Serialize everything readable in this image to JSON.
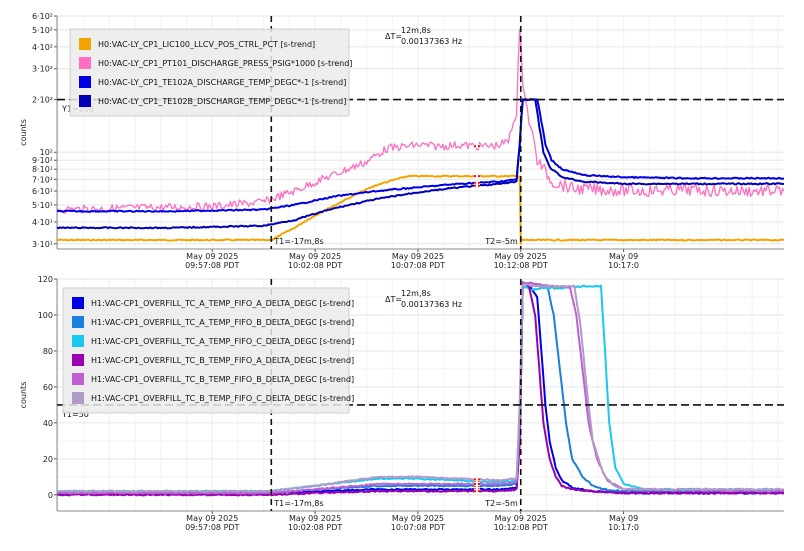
{
  "chart_data": [
    {
      "type": "line",
      "ylabel": "counts",
      "yscale": "log",
      "ylim": [
        28,
        600
      ],
      "yticks": [
        {
          "v": 30,
          "label": "3·10¹"
        },
        {
          "v": 40,
          "label": "4·10¹"
        },
        {
          "v": 50,
          "label": "5·10¹"
        },
        {
          "v": 60,
          "label": "6·10¹"
        },
        {
          "v": 70,
          "label": "7·10¹"
        },
        {
          "v": 80,
          "label": "8·10¹"
        },
        {
          "v": 90,
          "label": "9·10¹"
        },
        {
          "v": 100,
          "label": "10²"
        },
        {
          "v": 200,
          "label": "2·10²"
        },
        {
          "v": 300,
          "label": "3·10²"
        },
        {
          "v": 400,
          "label": "4·10²"
        },
        {
          "v": 500,
          "label": "5·10²"
        },
        {
          "v": 600,
          "label": "6·10²"
        }
      ],
      "xlim": [
        -27.55,
        7.8
      ],
      "xticks": [
        {
          "v": -20,
          "line1": "May 09 2025",
          "line2": "09:57:08 PDT"
        },
        {
          "v": -15,
          "line1": "May 09 2025",
          "line2": "10:02:08 PDT"
        },
        {
          "v": -10,
          "line1": "May 09 2025",
          "line2": "10:07:08 PDT"
        },
        {
          "v": -5,
          "line1": "May 09 2025",
          "line2": "10:12:08 PDT"
        },
        {
          "v": 0,
          "line1": "May 09",
          "line2": "10:17:0"
        }
      ],
      "cursors": {
        "t1_value": -17.13,
        "t1_label": "T1=-17m,8s",
        "t2_value": -5.0,
        "t2_label": "T2=-5m",
        "y1_value": 200,
        "y1_label": "Y1=200",
        "delta_label": "ΔT=",
        "delta_line1": "12m,8s",
        "delta_line2": "0.00137363 Hz"
      },
      "series": [
        {
          "name": "H0:VAC-LY_CP1_LIC100_LLCV_POS_CTRL_PCT [s-trend]",
          "color": "#f5a300",
          "x": [
            -27.55,
            -17.13,
            -17.0,
            -16,
            -14,
            -12,
            -10.5,
            -8,
            -6,
            -5.2,
            -5.05,
            -5.0,
            -4.98,
            7.8
          ],
          "y": [
            31.5,
            31.5,
            32,
            37,
            50,
            65,
            73,
            73,
            73,
            73,
            73,
            30,
            31.5,
            31.5
          ]
        },
        {
          "name": "H0:VAC-LY_CP1_PT101_DISCHARGE_PRESS_PSIG*1000 [s-trend]",
          "color": "#ff6ec0",
          "x": [
            -27.55,
            -24,
            -20,
            -17.5,
            -16,
            -14,
            -12.5,
            -11.5,
            -10,
            -9,
            -8,
            -7,
            -6.2,
            -5.6,
            -5.2,
            -5.05,
            -4.9,
            -4.6,
            -4.2,
            -3.5,
            -2.5,
            -1,
            1,
            3,
            5,
            7.8
          ],
          "y": [
            47,
            48,
            49,
            52,
            60,
            75,
            88,
            105,
            110,
            108,
            110,
            108,
            109,
            115,
            170,
            480,
            250,
            150,
            90,
            68,
            62,
            61,
            60,
            61,
            60,
            60
          ]
        },
        {
          "name": "H0:VAC-LY_CP1_TE102A_DISCHARGE_TEMP_DEGC*-1 [s-trend]",
          "color": "#0000e6",
          "x": [
            -27.55,
            -22,
            -17.5,
            -16,
            -14,
            -12,
            -10,
            -8,
            -6,
            -5.2,
            -5.05,
            -4.9,
            -4.2,
            -4,
            -3.8,
            -3.5,
            -3,
            -2,
            0,
            3,
            7.8
          ],
          "y": [
            46,
            46,
            47,
            50,
            56,
            60,
            63,
            66,
            68,
            70,
            110,
            200,
            200,
            150,
            110,
            90,
            80,
            74,
            72,
            71,
            71
          ]
        },
        {
          "name": "H0:VAC-LY_CP1_TE102B_DISCHARGE_TEMP_DEGC*-1 [s-trend]",
          "color": "#0000b8",
          "x": [
            -27.55,
            -22,
            -17.5,
            -16,
            -14,
            -12,
            -10,
            -8,
            -6,
            -5.2,
            -5.05,
            -4.9,
            -4.3,
            -4.1,
            -3.9,
            -3.6,
            -3,
            -2,
            0,
            3,
            7.8
          ],
          "y": [
            37,
            37,
            38,
            41,
            48,
            54,
            59,
            63,
            66,
            68,
            110,
            200,
            200,
            140,
            100,
            82,
            72,
            68,
            66,
            66,
            66
          ]
        }
      ]
    },
    {
      "type": "line",
      "ylabel": "counts",
      "ylim": [
        -9,
        120
      ],
      "yticks": [
        0,
        20,
        40,
        60,
        80,
        100,
        120
      ],
      "xlim": [
        -27.55,
        7.8
      ],
      "xticks": [
        {
          "v": -20,
          "line1": "May 09 2025",
          "line2": "09:57:08 PDT"
        },
        {
          "v": -15,
          "line1": "May 09 2025",
          "line2": "10:02:08 PDT"
        },
        {
          "v": -10,
          "line1": "May 09 2025",
          "line2": "10:07:08 PDT"
        },
        {
          "v": -5,
          "line1": "May 09 2025",
          "line2": "10:12:08 PDT"
        },
        {
          "v": 0,
          "line1": "May 09",
          "line2": "10:17:0"
        }
      ],
      "cursors": {
        "t1_value": -17.13,
        "t1_label": "T1=-17m,8s",
        "t2_value": -5.0,
        "t2_label": "T2=-5m",
        "y1_value": 50,
        "y1_label": "Y1=50",
        "delta_label": "ΔT=",
        "delta_line1": "12m,8s",
        "delta_line2": "0.00137363 Hz"
      },
      "series": [
        {
          "name": "H1:VAC-CP1_OVERFILL_TC_A_TEMP_FIFO_A_DELTA_DEGC [s-trend]",
          "color": "#0000e6",
          "x": [
            -27.55,
            -17.2,
            -15,
            -12,
            -10,
            -8,
            -6,
            -5.2,
            -5.05,
            -4.9,
            -4.5,
            -4.2,
            -4,
            -3.8,
            -3.6,
            -3.3,
            -3,
            -2.5,
            -1.5,
            0,
            7.8
          ],
          "y": [
            1,
            1,
            2,
            3,
            3,
            3,
            3,
            4,
            30,
            118,
            115,
            110,
            80,
            50,
            30,
            15,
            8,
            4,
            2,
            1,
            1
          ]
        },
        {
          "name": "H1:VAC-CP1_OVERFILL_TC_A_TEMP_FIFO_B_DELTA_DEGC [s-trend]",
          "color": "#1a7de0",
          "x": [
            -27.55,
            -17.2,
            -15,
            -12,
            -10,
            -8,
            -6,
            -5.2,
            -5.05,
            -4.9,
            -4.2,
            -3.7,
            -3.4,
            -3.1,
            -2.8,
            -2.5,
            -2,
            -1.5,
            -1,
            0,
            7.8
          ],
          "y": [
            1,
            1,
            3,
            5,
            5,
            5,
            5,
            6,
            40,
            118,
            117,
            116,
            100,
            70,
            40,
            20,
            10,
            5,
            3,
            2,
            2
          ]
        },
        {
          "name": "H1:VAC-CP1_OVERFILL_TC_A_TEMP_FIFO_C_DELTA_DEGC [s-trend]",
          "color": "#19c8f0",
          "x": [
            -27.55,
            -17.2,
            -15,
            -12,
            -10,
            -8,
            -6,
            -5.2,
            -5.05,
            -4.9,
            -4.5,
            -4,
            -3,
            -2,
            -1.1,
            -0.9,
            -0.7,
            -0.4,
            0,
            1,
            7.8
          ],
          "y": [
            2,
            2,
            5,
            9,
            9,
            8,
            7,
            8,
            50,
            116,
            114,
            115,
            115,
            116,
            116,
            80,
            40,
            15,
            6,
            3,
            3
          ]
        },
        {
          "name": "H1:VAC-CP1_OVERFILL_TC_B_TEMP_FIFO_A_DELTA_DEGC [s-trend]",
          "color": "#9a00b0",
          "x": [
            -27.55,
            -17.2,
            -15,
            -12,
            -10,
            -8,
            -6,
            -5.2,
            -5.05,
            -4.9,
            -4.6,
            -4.3,
            -4.1,
            -3.9,
            -3.6,
            -3.3,
            -3,
            -2.5,
            -1.5,
            0,
            7.8
          ],
          "y": [
            0,
            0,
            1,
            2,
            2,
            2,
            2,
            3,
            30,
            118,
            116,
            100,
            70,
            40,
            20,
            10,
            5,
            3,
            2,
            1,
            1
          ]
        },
        {
          "name": "H1:VAC-CP1_OVERFILL_TC_B_TEMP_FIFO_B_DELTA_DEGC [s-trend]",
          "color": "#c060d0",
          "x": [
            -27.55,
            -17.2,
            -15,
            -12,
            -10,
            -8,
            -6,
            -5.2,
            -5.05,
            -4.9,
            -4.2,
            -3.5,
            -3,
            -2.6,
            -2.3,
            -2,
            -1.7,
            -1.3,
            -0.8,
            0,
            7.8
          ],
          "y": [
            1,
            1,
            3,
            6,
            6,
            6,
            6,
            7,
            40,
            118,
            117,
            116,
            116,
            115,
            100,
            70,
            40,
            20,
            8,
            3,
            2
          ]
        },
        {
          "name": "H1:VAC-CP1_OVERFILL_TC_B_TEMP_FIFO_C_DELTA_DEGC [s-trend]",
          "color": "#b09ac8",
          "x": [
            -27.55,
            -17.2,
            -15,
            -12,
            -10,
            -8,
            -6,
            -5.2,
            -5.05,
            -4.9,
            -4.2,
            -3.5,
            -2.8,
            -2.4,
            -2.1,
            -1.8,
            -1.5,
            -1,
            -0.5,
            0,
            7.8
          ],
          "y": [
            2,
            2,
            5,
            10,
            10,
            9,
            8,
            9,
            50,
            117,
            116,
            116,
            116,
            116,
            95,
            60,
            30,
            12,
            5,
            3,
            3
          ]
        }
      ]
    }
  ]
}
